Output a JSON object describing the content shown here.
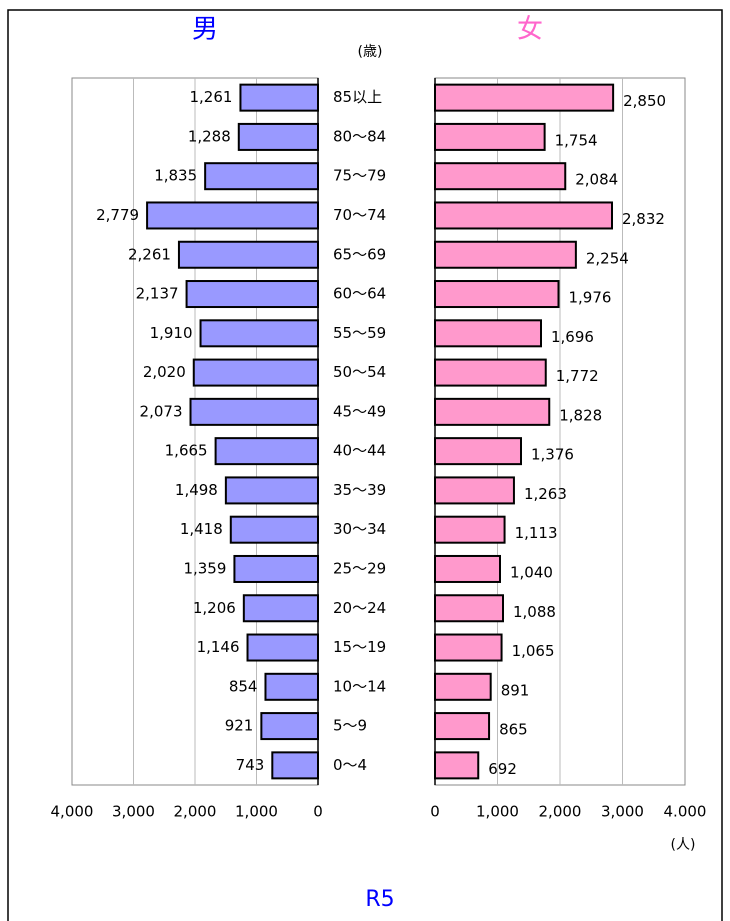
{
  "chart_data": {
    "type": "bar",
    "orientation": "horizontal",
    "title": "R5",
    "y_label": "(歳)",
    "x_label": "(人)",
    "grid": true,
    "categories": [
      "85以上",
      "80～84",
      "75～79",
      "70～74",
      "65～69",
      "60～64",
      "55～59",
      "50～54",
      "45～49",
      "40～44",
      "35～39",
      "30～34",
      "25～29",
      "20～24",
      "15～19",
      "10～14",
      "5～9",
      "0～4"
    ],
    "series": [
      {
        "name": "男",
        "color": "#9999ff",
        "values": [
          1261,
          1288,
          1835,
          2779,
          2261,
          2137,
          1910,
          2020,
          2073,
          1665,
          1498,
          1418,
          1359,
          1206,
          1146,
          854,
          921,
          743
        ],
        "value_labels": [
          "1,261",
          "1,288",
          "1,835",
          "2,779",
          "2,261",
          "2,137",
          "1,910",
          "2,020",
          "2,073",
          "1,665",
          "1,498",
          "1,418",
          "1,359",
          "1,206",
          "1,146",
          "854",
          "921",
          "743"
        ],
        "xlim": [
          0,
          4000
        ],
        "xticks": [
          {
            "value": 4000,
            "label": "4,000"
          },
          {
            "value": 3000,
            "label": "3,000"
          },
          {
            "value": 2000,
            "label": "2,000"
          },
          {
            "value": 1000,
            "label": "1,000"
          },
          0
        ]
      },
      {
        "name": "女",
        "color": "#ff99cc",
        "values": [
          2850,
          1754,
          2084,
          2832,
          2254,
          1976,
          1696,
          1772,
          1828,
          1376,
          1263,
          1113,
          1040,
          1088,
          1065,
          891,
          865,
          692
        ],
        "value_labels": [
          "2,850",
          "1,754",
          "2,084",
          "2,832",
          "2,254",
          "1,976",
          "1,696",
          "1,772",
          "1,828",
          "1,376",
          "1,263",
          "1,113",
          "1,040",
          "1,088",
          "1,065",
          "891",
          "865",
          "692"
        ],
        "xlim": [
          0,
          4000
        ],
        "xticks": [
          0,
          {
            "value": 1000,
            "label": "1,000"
          },
          {
            "value": 2000,
            "label": "2,000"
          },
          {
            "value": 3000,
            "label": "3,000"
          },
          {
            "value": 4000,
            "label": "4.000"
          }
        ]
      }
    ]
  }
}
